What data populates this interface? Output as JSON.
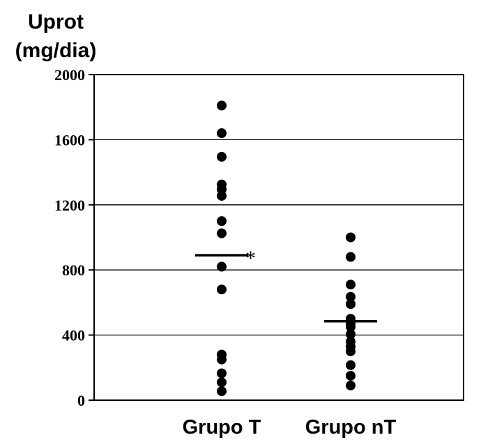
{
  "chart_data": {
    "type": "scatter",
    "title": "",
    "ylabel": [
      "Uprot",
      "(mg/dia)"
    ],
    "xlabel": "",
    "ylim": [
      0,
      2000
    ],
    "yticks": [
      0,
      400,
      800,
      1200,
      1600,
      2000
    ],
    "ytick_labels": [
      "0",
      "400",
      "800",
      "1200",
      "1600",
      "2000"
    ],
    "grid": true,
    "categories": [
      "Grupo T",
      "Grupo nT"
    ],
    "series": [
      {
        "category": "Grupo T",
        "values": [
          1810,
          1640,
          1495,
          1325,
          1295,
          1255,
          1100,
          1025,
          820,
          680,
          280,
          250,
          165,
          110,
          55
        ],
        "median": 890,
        "annotation": "*"
      },
      {
        "category": "Grupo nT",
        "values": [
          1000,
          880,
          710,
          635,
          590,
          500,
          470,
          450,
          405,
          360,
          330,
          300,
          215,
          150,
          90
        ],
        "median": 485,
        "annotation": ""
      }
    ],
    "marker_color": "#000000"
  }
}
